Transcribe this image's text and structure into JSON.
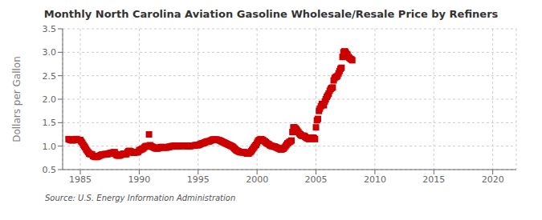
{
  "chart_data": {
    "type": "scatter",
    "title": "Monthly North Carolina Aviation Gasoline Wholesale/Resale Price by Refiners",
    "y_label": "Dollars per Gallon",
    "annotations": [
      "Source: U.S. Energy Information Administration"
    ],
    "color": "#cc0000",
    "marker": "square",
    "grid": true,
    "xlim": [
      1983.5,
      2022
    ],
    "ylim": [
      0.5,
      3.5
    ],
    "xticks": [
      1985,
      1990,
      1995,
      2000,
      2005,
      2010,
      2015,
      2020
    ],
    "yticks": [
      0.5,
      {
        "value": 1.0,
        "label": "1.0"
      },
      1.5,
      {
        "value": 2.0,
        "label": "2.0"
      },
      2.5,
      {
        "value": 3.0,
        "label": "3.0"
      },
      3.5
    ],
    "x": [
      1984.0,
      1984.08,
      1984.17,
      1984.25,
      1984.33,
      1984.42,
      1984.5,
      1984.58,
      1984.67,
      1984.75,
      1984.83,
      1984.92,
      1985.0,
      1985.08,
      1985.17,
      1985.25,
      1985.33,
      1985.42,
      1985.5,
      1985.58,
      1985.67,
      1985.75,
      1985.83,
      1985.92,
      1986.0,
      1986.08,
      1986.17,
      1986.25,
      1986.33,
      1986.42,
      1986.5,
      1986.58,
      1986.67,
      1986.75,
      1986.83,
      1986.92,
      1987.0,
      1987.08,
      1987.17,
      1987.25,
      1987.33,
      1987.42,
      1987.5,
      1987.58,
      1987.67,
      1987.75,
      1987.83,
      1987.92,
      1988.0,
      1988.08,
      1988.17,
      1988.25,
      1988.33,
      1988.42,
      1988.5,
      1988.58,
      1988.67,
      1988.75,
      1988.83,
      1988.92,
      1989.0,
      1989.08,
      1989.17,
      1989.25,
      1989.33,
      1989.42,
      1989.5,
      1989.58,
      1989.67,
      1989.75,
      1989.83,
      1989.92,
      1990.0,
      1990.08,
      1990.17,
      1990.25,
      1990.33,
      1990.42,
      1990.5,
      1990.58,
      1990.67,
      1990.75,
      1990.83,
      1990.92,
      1991.0,
      1991.08,
      1991.17,
      1991.25,
      1991.33,
      1991.42,
      1991.5,
      1991.58,
      1991.67,
      1991.75,
      1991.83,
      1991.92,
      1992.0,
      1992.08,
      1992.17,
      1992.25,
      1992.33,
      1992.42,
      1992.5,
      1992.58,
      1992.67,
      1992.75,
      1992.83,
      1992.92,
      1993.0,
      1993.08,
      1993.17,
      1993.25,
      1993.33,
      1993.42,
      1993.5,
      1993.58,
      1993.67,
      1993.75,
      1993.83,
      1993.92,
      1994.0,
      1994.08,
      1994.17,
      1994.25,
      1994.33,
      1994.42,
      1994.5,
      1994.58,
      1994.67,
      1994.75,
      1994.83,
      1994.92,
      1995.0,
      1995.08,
      1995.17,
      1995.25,
      1995.33,
      1995.42,
      1995.5,
      1995.58,
      1995.67,
      1995.75,
      1995.83,
      1995.92,
      1996.0,
      1996.08,
      1996.17,
      1996.25,
      1996.33,
      1996.42,
      1996.5,
      1996.58,
      1996.67,
      1996.75,
      1996.83,
      1996.92,
      1997.0,
      1997.08,
      1997.17,
      1997.25,
      1997.33,
      1997.42,
      1997.5,
      1997.58,
      1997.67,
      1997.75,
      1997.83,
      1997.92,
      1998.0,
      1998.08,
      1998.17,
      1998.25,
      1998.33,
      1998.42,
      1998.5,
      1998.58,
      1998.67,
      1998.75,
      1998.83,
      1998.92,
      1999.0,
      1999.08,
      1999.17,
      1999.25,
      1999.33,
      1999.42,
      1999.5,
      1999.58,
      1999.67,
      1999.75,
      1999.83,
      1999.92,
      2000.0,
      2000.08,
      2000.17,
      2000.25,
      2000.33,
      2000.42,
      2000.5,
      2000.58,
      2000.67,
      2000.75,
      2000.83,
      2000.92,
      2001.0,
      2001.08,
      2001.17,
      2001.25,
      2001.33,
      2001.42,
      2001.5,
      2001.58,
      2001.67,
      2001.75,
      2001.83,
      2001.92,
      2002.0,
      2002.08,
      2002.17,
      2002.25,
      2002.33,
      2002.42,
      2002.5,
      2002.58,
      2002.67,
      2002.75,
      2002.83,
      2002.92,
      2003.0,
      2003.08,
      2003.17,
      2003.25,
      2003.33,
      2003.42,
      2003.5,
      2003.58,
      2003.67,
      2003.75,
      2003.83,
      2003.92,
      2004.0,
      2004.08,
      2004.17,
      2004.25,
      2004.33,
      2004.42,
      2004.5,
      2004.58,
      2004.67,
      2004.75,
      2004.83,
      2004.92,
      2005.0,
      2005.08,
      2005.17,
      2005.25,
      2005.33,
      2005.42,
      2005.5,
      2005.58,
      2005.67,
      2005.75,
      2005.83,
      2005.92,
      2006.0,
      2006.08,
      2006.17,
      2006.25,
      2006.33,
      2006.42,
      2006.5,
      2006.58,
      2006.67,
      2006.75,
      2006.83,
      2006.92,
      2007.0,
      2007.08,
      2007.17,
      2007.25,
      2007.33,
      2007.42,
      2007.5,
      2007.58,
      2007.67,
      2007.75,
      2007.83,
      2007.92,
      2008.0,
      2008.08
    ],
    "values": [
      1.15,
      1.14,
      1.13,
      1.13,
      1.12,
      1.13,
      1.14,
      1.15,
      1.15,
      1.14,
      1.13,
      1.13,
      1.13,
      1.1,
      1.07,
      1.03,
      1.0,
      0.97,
      0.93,
      0.9,
      0.87,
      0.84,
      0.83,
      0.83,
      0.82,
      0.79,
      0.78,
      0.77,
      0.77,
      0.77,
      0.78,
      0.79,
      0.8,
      0.81,
      0.82,
      0.82,
      0.82,
      0.83,
      0.83,
      0.83,
      0.83,
      0.84,
      0.85,
      0.85,
      0.86,
      0.86,
      0.87,
      0.87,
      0.83,
      0.81,
      0.8,
      0.8,
      0.8,
      0.81,
      0.82,
      0.83,
      0.84,
      0.83,
      0.83,
      0.83,
      0.87,
      0.89,
      0.9,
      0.89,
      0.88,
      0.87,
      0.86,
      0.86,
      0.87,
      0.87,
      0.87,
      0.88,
      0.91,
      0.92,
      0.93,
      0.94,
      0.95,
      0.97,
      0.99,
      1.0,
      1.0,
      1.0,
      1.25,
      1.02,
      1.0,
      0.99,
      0.98,
      0.97,
      0.96,
      0.95,
      0.95,
      0.95,
      0.96,
      0.97,
      0.98,
      0.98,
      0.98,
      0.97,
      0.97,
      0.97,
      0.97,
      0.98,
      0.98,
      0.99,
      0.99,
      1.0,
      1.0,
      1.0,
      1.01,
      1.0,
      1.0,
      1.0,
      1.0,
      1.0,
      1.0,
      1.01,
      1.01,
      1.01,
      1.01,
      1.01,
      1.0,
      1.0,
      1.0,
      1.0,
      1.0,
      1.01,
      1.01,
      1.01,
      1.01,
      1.02,
      1.02,
      1.02,
      1.02,
      1.03,
      1.04,
      1.05,
      1.06,
      1.06,
      1.07,
      1.08,
      1.09,
      1.1,
      1.1,
      1.1,
      1.11,
      1.12,
      1.13,
      1.14,
      1.14,
      1.14,
      1.14,
      1.14,
      1.13,
      1.13,
      1.12,
      1.11,
      1.1,
      1.09,
      1.08,
      1.07,
      1.06,
      1.05,
      1.04,
      1.03,
      1.02,
      1.01,
      1.0,
      0.99,
      0.97,
      0.95,
      0.93,
      0.91,
      0.9,
      0.89,
      0.88,
      0.87,
      0.87,
      0.87,
      0.87,
      0.87,
      0.86,
      0.85,
      0.84,
      0.84,
      0.85,
      0.87,
      0.89,
      0.92,
      0.95,
      0.98,
      1.01,
      1.03,
      1.07,
      1.11,
      1.13,
      1.14,
      1.15,
      1.14,
      1.13,
      1.11,
      1.1,
      1.08,
      1.06,
      1.05,
      1.04,
      1.02,
      1.01,
      1.0,
      1.0,
      0.99,
      0.99,
      0.98,
      0.97,
      0.96,
      0.95,
      0.94,
      0.93,
      0.93,
      0.94,
      0.95,
      0.97,
      1.0,
      1.03,
      1.06,
      1.07,
      1.09,
      1.1,
      1.12,
      1.3,
      1.4,
      1.4,
      1.38,
      1.36,
      1.33,
      1.3,
      1.27,
      1.25,
      1.23,
      1.22,
      1.22,
      1.22,
      1.2,
      1.18,
      1.17,
      1.16,
      1.15,
      1.16,
      1.17,
      1.18,
      1.18,
      1.17,
      1.15,
      1.4,
      1.55,
      1.58,
      1.75,
      1.8,
      1.85,
      1.9,
      1.88,
      1.87,
      1.95,
      2.0,
      2.05,
      2.08,
      2.12,
      2.18,
      2.22,
      2.24,
      2.25,
      2.4,
      2.45,
      2.47,
      2.48,
      2.5,
      2.55,
      2.6,
      2.65,
      2.67,
      2.9,
      3.0,
      3.02,
      3.01,
      2.97,
      2.95,
      2.9,
      2.88,
      2.86,
      2.85,
      2.83
    ]
  }
}
